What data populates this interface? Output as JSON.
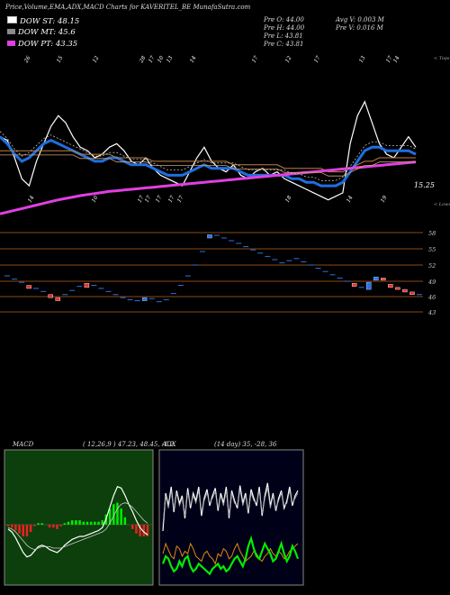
{
  "header": {
    "title": "Price,Volume,EMA,ADX,MACD Charts for KAVERITEL_BE MunafaSutra.com",
    "dow_st": "DOW ST: 48.15",
    "dow_mt": "DOW MT: 45.6",
    "dow_pt": "DOW PT: 43.35",
    "prev": [
      "Pre O: 44.00",
      "Pre H: 44.00",
      "Pre L: 43.81",
      "Pre C: 43.81"
    ],
    "avg_v": "Avg V: 0.003 M",
    "pre_v": "Pre V: 0.016 M"
  },
  "colors": {
    "dow_st": "#ffffff",
    "dow_mt": "#8a8a8a",
    "dow_pt": "#e040e0",
    "ema_fast": "#1f6fe0",
    "ema_mid": "#c08040",
    "ema_slow": "#d0a070",
    "price_line": "#ffffff",
    "candle_up": "#2f6fe8",
    "candle_down": "#e23030",
    "level_line": "#8a4a16",
    "macd_panel_bg": "#0c3f0c",
    "adx_panel_bg": "#000018",
    "macd_hist_pos": "#00ee00",
    "macd_hist_neg": "#ee2020",
    "adx_green": "#00ee00",
    "adx_orange": "#e08a10"
  },
  "price_panel": {
    "top_label": "< Tops",
    "bottom_label": "< Lows",
    "value_label": "15.25",
    "top_dates": [
      "26",
      "15",
      "12",
      "28",
      "17",
      "10",
      "13",
      "14",
      "17",
      "12",
      "17",
      "13",
      "17",
      "14"
    ],
    "bottom_dates": [
      "14",
      "10",
      "17",
      "17",
      "17",
      "17",
      "17",
      "18",
      "14",
      "19"
    ]
  },
  "candle_panel": {
    "levels": [
      "58",
      "55",
      "52",
      "49",
      "46",
      "43"
    ]
  },
  "macd": {
    "label": "MACD",
    "params": "( 12,26,9 ) 47.23, 48.45, -1.2"
  },
  "adx": {
    "label": "ADX",
    "params": "(14 day) 35, -28, 36"
  },
  "chart_data": [
    {
      "type": "line",
      "name": "price_ema",
      "x": [
        0,
        1,
        2,
        3,
        4,
        5,
        6,
        7,
        8,
        9,
        10,
        11,
        12,
        13,
        14,
        15,
        16,
        17,
        18,
        19,
        20,
        21,
        22,
        23,
        24,
        25,
        26,
        27,
        28,
        29,
        30,
        31,
        32,
        33,
        34,
        35,
        36,
        37,
        38,
        39,
        40,
        41,
        42,
        43,
        44,
        45,
        46,
        47,
        48,
        49,
        50,
        51,
        52,
        53,
        54,
        55,
        56,
        57
      ],
      "series": [
        {
          "values": [
            52,
            51,
            46,
            40,
            38,
            45,
            50,
            55,
            58,
            56,
            52,
            49,
            48,
            46,
            47,
            49,
            50,
            48,
            45,
            44,
            46,
            43,
            41,
            40,
            39,
            38,
            42,
            46,
            49,
            45,
            43,
            42,
            44,
            41,
            40,
            42,
            43,
            41,
            42,
            40,
            39,
            38,
            37,
            36,
            35,
            34,
            35,
            36,
            50,
            58,
            62,
            56,
            50,
            47,
            46,
            49,
            52,
            49
          ]
        },
        {
          "values": [
            52,
            50,
            47,
            45,
            46,
            48,
            50,
            51,
            50,
            49,
            48,
            47,
            46,
            45,
            45,
            46,
            46,
            45,
            44,
            44,
            44,
            43,
            42,
            41,
            41,
            41,
            42,
            43,
            44,
            43,
            43,
            43,
            43,
            42,
            41,
            41,
            41,
            41,
            41,
            41,
            40,
            40,
            39,
            39,
            38,
            38,
            38,
            39,
            42,
            45,
            48,
            49,
            49,
            48,
            48,
            48,
            48,
            47
          ]
        },
        {
          "values": [
            48,
            48,
            48,
            48,
            48,
            48,
            48,
            48,
            48,
            48,
            48,
            47,
            47,
            47,
            47,
            47,
            46,
            46,
            46,
            46,
            46,
            45,
            45,
            45,
            45,
            45,
            45,
            45,
            45,
            45,
            45,
            45,
            44,
            44,
            44,
            44,
            44,
            44,
            44,
            43,
            43,
            43,
            43,
            43,
            43,
            42,
            42,
            42,
            43,
            44,
            45,
            45,
            46,
            46,
            46,
            46,
            46,
            46
          ]
        },
        {
          "values": [
            30,
            30.5,
            31,
            31.5,
            32,
            32.5,
            33,
            33.5,
            34,
            34.4,
            34.8,
            35.2,
            35.5,
            35.8,
            36.1,
            36.4,
            36.6,
            36.8,
            37,
            37.2,
            37.4,
            37.6,
            37.8,
            38,
            38.2,
            38.4,
            38.6,
            38.8,
            39,
            39.2,
            39.4,
            39.6,
            39.8,
            40,
            40.2,
            40.4,
            40.6,
            40.8,
            41,
            41.2,
            41.4,
            41.6,
            41.8,
            42,
            42.2,
            42.4,
            42.6,
            42.8,
            43,
            43.2,
            43.4,
            43.6,
            43.8,
            44,
            44.2,
            44.4,
            44.6,
            44.8
          ]
        }
      ]
    },
    {
      "type": "bar",
      "name": "candles",
      "categories": [
        0,
        1,
        2,
        3,
        4,
        5,
        6,
        7,
        8,
        9,
        10,
        11,
        12,
        13,
        14,
        15,
        16,
        17,
        18,
        19,
        20,
        21,
        22,
        23,
        24,
        25,
        26,
        27,
        28,
        29,
        30,
        31,
        32,
        33,
        34,
        35,
        36,
        37,
        38,
        39,
        40,
        41,
        42,
        43,
        44,
        45,
        46,
        47,
        48,
        49,
        50,
        51,
        52,
        53,
        54,
        55,
        56,
        57
      ],
      "open": [
        50,
        49.4,
        48.8,
        48.2,
        47.6,
        47,
        46.4,
        45.8,
        46.4,
        47.2,
        48,
        48.6,
        48.2,
        47.6,
        47,
        46.4,
        45.8,
        45.4,
        45.2,
        45.2,
        45.6,
        45,
        45.4,
        46.6,
        48.2,
        50,
        52,
        54.5,
        57,
        57.5,
        57,
        56.5,
        56,
        55.4,
        54.8,
        54.2,
        53.6,
        53,
        52.4,
        52.8,
        53.2,
        52.6,
        52,
        51.4,
        50.8,
        50.2,
        49.6,
        49,
        48.6,
        47.8,
        47.4,
        49.2,
        49.6,
        48.4,
        47.8,
        47.4,
        46.9,
        46.4
      ],
      "close": [
        50,
        49.4,
        48.8,
        47.6,
        47.6,
        47,
        45.8,
        45.2,
        46.4,
        47.2,
        48,
        47.8,
        48.2,
        47.6,
        47,
        46.4,
        45.8,
        45.4,
        45.2,
        45.8,
        45.6,
        45,
        45.4,
        46.6,
        48.2,
        50,
        52,
        54.5,
        57.6,
        57.5,
        57,
        56.5,
        56,
        55.4,
        54.8,
        54.2,
        53.6,
        53,
        52.4,
        52.8,
        53.2,
        52.6,
        52,
        51.4,
        50.8,
        50.2,
        49.6,
        49,
        48,
        47.6,
        48.8,
        49.8,
        49.2,
        47.8,
        47.4,
        46.9,
        46.4,
        46.4
      ],
      "levels": [
        58,
        55,
        52,
        49,
        46,
        43
      ]
    },
    {
      "type": "line",
      "name": "macd",
      "x": [
        0,
        1,
        2,
        3,
        4,
        5,
        6,
        7,
        8,
        9,
        10,
        11,
        12,
        13,
        14,
        15,
        16,
        17,
        18,
        19,
        20,
        21,
        22,
        23,
        24,
        25,
        26,
        27,
        28,
        29,
        30,
        31,
        32,
        33,
        34,
        35,
        36,
        37
      ],
      "series": [
        {
          "values": [
            -0.3,
            -0.5,
            -0.9,
            -1.4,
            -1.9,
            -2.2,
            -2.1,
            -1.8,
            -1.5,
            -1.4,
            -1.5,
            -1.7,
            -1.8,
            -1.9,
            -1.7,
            -1.4,
            -1.2,
            -1.0,
            -0.9,
            -0.8,
            -0.8,
            -0.7,
            -0.6,
            -0.5,
            -0.4,
            -0.2,
            0.4,
            1.2,
            2.0,
            2.6,
            2.5,
            2.0,
            1.4,
            0.9,
            0.3,
            -0.2,
            -0.5,
            -0.7
          ]
        },
        {
          "values": [
            -0.2,
            -0.3,
            -0.5,
            -0.8,
            -1.1,
            -1.4,
            -1.6,
            -1.7,
            -1.6,
            -1.5,
            -1.5,
            -1.5,
            -1.6,
            -1.6,
            -1.6,
            -1.5,
            -1.4,
            -1.3,
            -1.2,
            -1.1,
            -1.0,
            -0.9,
            -0.8,
            -0.7,
            -0.6,
            -0.5,
            -0.3,
            0.1,
            0.6,
            1.1,
            1.4,
            1.5,
            1.4,
            1.2,
            0.9,
            0.6,
            0.3,
            0.1
          ]
        }
      ],
      "histogram": [
        -0.1,
        -0.2,
        -0.4,
        -0.6,
        -0.8,
        -0.8,
        -0.5,
        -0.1,
        0.1,
        0.1,
        0.0,
        -0.2,
        -0.2,
        -0.3,
        -0.1,
        0.1,
        0.2,
        0.3,
        0.3,
        0.3,
        0.2,
        0.2,
        0.2,
        0.2,
        0.2,
        0.3,
        0.7,
        1.1,
        1.4,
        1.5,
        1.1,
        0.5,
        0.0,
        -0.3,
        -0.6,
        -0.8,
        -0.8,
        -0.8
      ]
    },
    {
      "type": "line",
      "name": "adx",
      "x": [
        0,
        1,
        2,
        3,
        4,
        5,
        6,
        7,
        8,
        9,
        10,
        11,
        12,
        13,
        14,
        15,
        16,
        17,
        18,
        19,
        20,
        21,
        22,
        23,
        24,
        25,
        26,
        27,
        28,
        29,
        30,
        31,
        32,
        33,
        34,
        35,
        36,
        37,
        38,
        39,
        40,
        41,
        42,
        43,
        44,
        45,
        46,
        47,
        48,
        49
      ],
      "series": [
        {
          "values": [
            40,
            70,
            60,
            75,
            55,
            72,
            62,
            68,
            50,
            74,
            58,
            70,
            64,
            75,
            52,
            66,
            73,
            60,
            68,
            74,
            56,
            70,
            62,
            75,
            50,
            72,
            64,
            58,
            76,
            62,
            70,
            54,
            73,
            66,
            60,
            75,
            52,
            68,
            78,
            60,
            70,
            56,
            66,
            72,
            58,
            64,
            75,
            60,
            68,
            72
          ]
        },
        {
          "values": [
            45,
            68,
            58,
            72,
            57,
            70,
            60,
            66,
            52,
            71,
            60,
            68,
            62,
            72,
            55,
            64,
            70,
            62,
            66,
            71,
            58,
            68,
            60,
            72,
            52,
            70,
            62,
            60,
            73,
            60,
            68,
            56,
            70,
            64,
            62,
            72,
            54,
            66,
            74,
            58,
            68,
            58,
            64,
            70,
            60,
            62,
            72,
            62,
            66,
            70
          ]
        },
        {
          "values": [
            22,
            30,
            25,
            20,
            18,
            28,
            26,
            20,
            24,
            22,
            30,
            26,
            20,
            18,
            16,
            22,
            24,
            20,
            18,
            14,
            22,
            20,
            26,
            24,
            18,
            20,
            26,
            30,
            24,
            20,
            16,
            18,
            20,
            24,
            22,
            18,
            16,
            20,
            22,
            26,
            22,
            20,
            24,
            22,
            18,
            20,
            24,
            26,
            28,
            30
          ]
        },
        {
          "values": [
            14,
            20,
            18,
            12,
            8,
            10,
            16,
            12,
            18,
            20,
            12,
            8,
            10,
            14,
            12,
            10,
            8,
            6,
            10,
            12,
            14,
            10,
            12,
            8,
            10,
            14,
            18,
            20,
            16,
            12,
            18,
            28,
            34,
            26,
            20,
            18,
            24,
            30,
            26,
            22,
            16,
            18,
            24,
            30,
            22,
            16,
            20,
            28,
            24,
            18
          ]
        }
      ]
    }
  ]
}
